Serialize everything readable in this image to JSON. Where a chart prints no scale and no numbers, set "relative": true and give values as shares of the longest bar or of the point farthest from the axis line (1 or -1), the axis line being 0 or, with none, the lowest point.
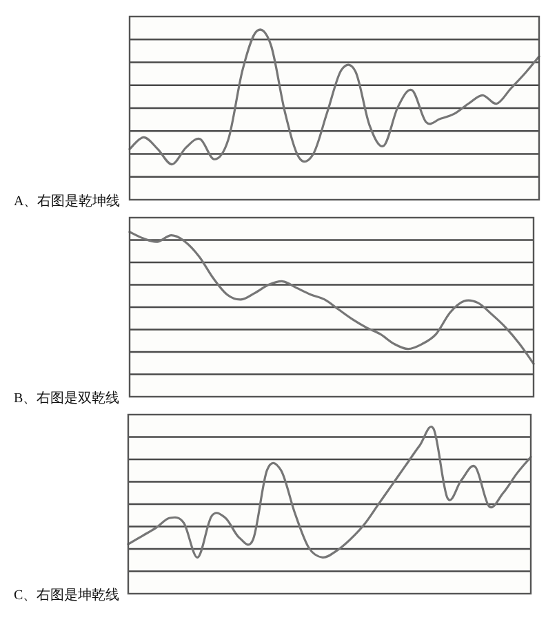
{
  "chart_data": [
    {
      "type": "line",
      "title": "A、右图是乾坤线",
      "categories": [
        null,
        null,
        null,
        null,
        null,
        null,
        null,
        null,
        null,
        null,
        null,
        null,
        null,
        null,
        null,
        null,
        null,
        null,
        null,
        null,
        null,
        null,
        null,
        null,
        null,
        null,
        null,
        null,
        null,
        null
      ],
      "relative": true,
      "grid": true,
      "color": "#767676",
      "values": [
        0.3,
        0.37,
        0.3,
        0.21,
        0.31,
        0.36,
        0.24,
        0.36,
        0.77,
        1.0,
        0.92,
        0.52,
        0.25,
        0.27,
        0.52,
        0.77,
        0.76,
        0.44,
        0.32,
        0.55,
        0.65,
        0.46,
        0.48,
        0.51,
        0.57,
        0.62,
        0.57,
        0.66,
        0.75,
        0.85
      ]
    },
    {
      "type": "line",
      "title": "B、右图是双乾线",
      "categories": [
        null,
        null,
        null,
        null,
        null,
        null,
        null,
        null,
        null,
        null,
        null,
        null,
        null,
        null,
        null,
        null,
        null,
        null,
        null,
        null,
        null,
        null,
        null,
        null,
        null,
        null,
        null,
        null,
        null,
        null
      ],
      "relative": true,
      "grid": true,
      "color": "#767676",
      "values": [
        1.0,
        0.96,
        0.94,
        0.98,
        0.94,
        0.85,
        0.72,
        0.62,
        0.59,
        0.63,
        0.68,
        0.7,
        0.66,
        0.62,
        0.59,
        0.53,
        0.47,
        0.42,
        0.38,
        0.32,
        0.29,
        0.32,
        0.38,
        0.51,
        0.58,
        0.57,
        0.5,
        0.42,
        0.32,
        0.2
      ]
    },
    {
      "type": "line",
      "title": "C、右图是坤乾线",
      "categories": [
        null,
        null,
        null,
        null,
        null,
        null,
        null,
        null,
        null,
        null,
        null,
        null,
        null,
        null,
        null,
        null,
        null,
        null,
        null,
        null,
        null,
        null,
        null,
        null,
        null,
        null,
        null,
        null,
        null,
        null
      ],
      "relative": true,
      "grid": true,
      "color": "#767676",
      "values": [
        0.3,
        0.35,
        0.4,
        0.46,
        0.43,
        0.22,
        0.47,
        0.46,
        0.34,
        0.33,
        0.75,
        0.75,
        0.49,
        0.28,
        0.22,
        0.26,
        0.33,
        0.42,
        0.54,
        0.66,
        0.78,
        0.9,
        1.0,
        0.58,
        0.69,
        0.77,
        0.53,
        0.61,
        0.73,
        0.83
      ]
    }
  ]
}
